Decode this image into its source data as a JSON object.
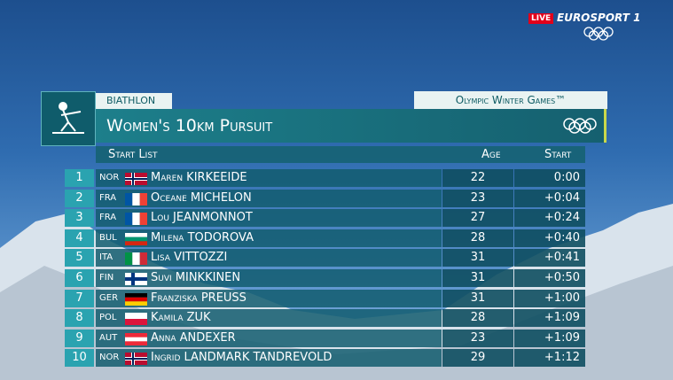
{
  "broadcast": {
    "live": "LIVE",
    "channel": "EUROSPORT 1"
  },
  "panel": {
    "sport": "BIATHLON",
    "event": "Olympic Winter Games™",
    "title": "Women's 10km Pursuit",
    "columns": [
      "Start List",
      "Age",
      "Start"
    ],
    "rows": [
      [
        1,
        "NOR",
        "Maren KIRKEEIDE",
        22,
        "0:00"
      ],
      [
        2,
        "FRA",
        "Oceane MICHELON",
        23,
        "+0:04"
      ],
      [
        3,
        "FRA",
        "Lou JEANMONNOT",
        27,
        "+0:24"
      ],
      [
        4,
        "BUL",
        "Milena TODOROVA",
        28,
        "+0:40"
      ],
      [
        5,
        "ITA",
        "Lisa VITTOZZI",
        31,
        "+0:41"
      ],
      [
        6,
        "FIN",
        "Suvi MINKKINEN",
        31,
        "+0:50"
      ],
      [
        7,
        "GER",
        "Franziska PREUSS",
        31,
        "+1:00"
      ],
      [
        8,
        "POL",
        "Kamila ZUK",
        28,
        "+1:09"
      ],
      [
        9,
        "AUT",
        "Anna ANDEXER",
        23,
        "+1:09"
      ],
      [
        10,
        "NOR",
        "Ingrid LANDMARK TANDREVOLD",
        29,
        "+1:12"
      ]
    ]
  }
}
